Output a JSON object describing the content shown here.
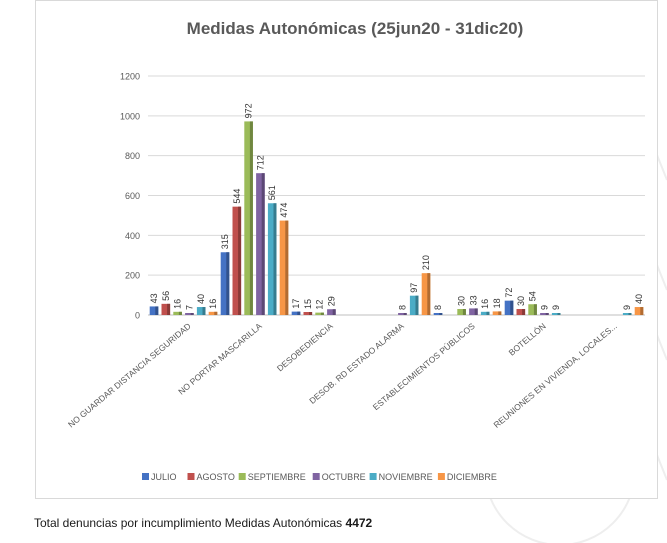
{
  "chart_data": {
    "type": "bar",
    "title": "Medidas Autonómicas (25jun20 - 31dic20)",
    "xlabel": "",
    "ylabel": "",
    "ylim": [
      0,
      1200
    ],
    "y_ticks": [
      "0",
      "200",
      "400",
      "600",
      "800",
      "1000",
      "1200"
    ],
    "grid": true,
    "legend_position": "bottom",
    "categories": [
      "NO GUARDAR DISTANCIA SEGURIDAD",
      "NO PORTAR MASCARILLA",
      "DESOBEDIENCIA",
      "DESOB. RD ESTADO ALARMA",
      "ESTABLECIMIENTOS PÚBLICOS",
      "BOTELLÓN",
      "REUNIONES EN VIVIENDA, LOCALES..."
    ],
    "series": [
      {
        "name": "JULIO",
        "color": "#4472c4",
        "values": [
          43,
          315,
          17,
          null,
          8,
          72,
          null
        ]
      },
      {
        "name": "AGOSTO",
        "color": "#c0504d",
        "values": [
          56,
          544,
          15,
          null,
          null,
          30,
          null
        ]
      },
      {
        "name": "SEPTIEMBRE",
        "color": "#9bbb59",
        "values": [
          16,
          972,
          12,
          null,
          30,
          54,
          null
        ]
      },
      {
        "name": "OCTUBRE",
        "color": "#8064a2",
        "values": [
          7,
          712,
          29,
          8,
          33,
          9,
          null
        ]
      },
      {
        "name": "NOVIEMBRE",
        "color": "#4bacc6",
        "values": [
          40,
          561,
          null,
          97,
          16,
          9,
          9
        ]
      },
      {
        "name": "DICIEMBRE",
        "color": "#f79646",
        "values": [
          16,
          474,
          null,
          210,
          18,
          null,
          40
        ]
      }
    ]
  },
  "caption": {
    "text": "Total denuncias por incumplimiento Medidas Autonómicas ",
    "total": "4472"
  }
}
